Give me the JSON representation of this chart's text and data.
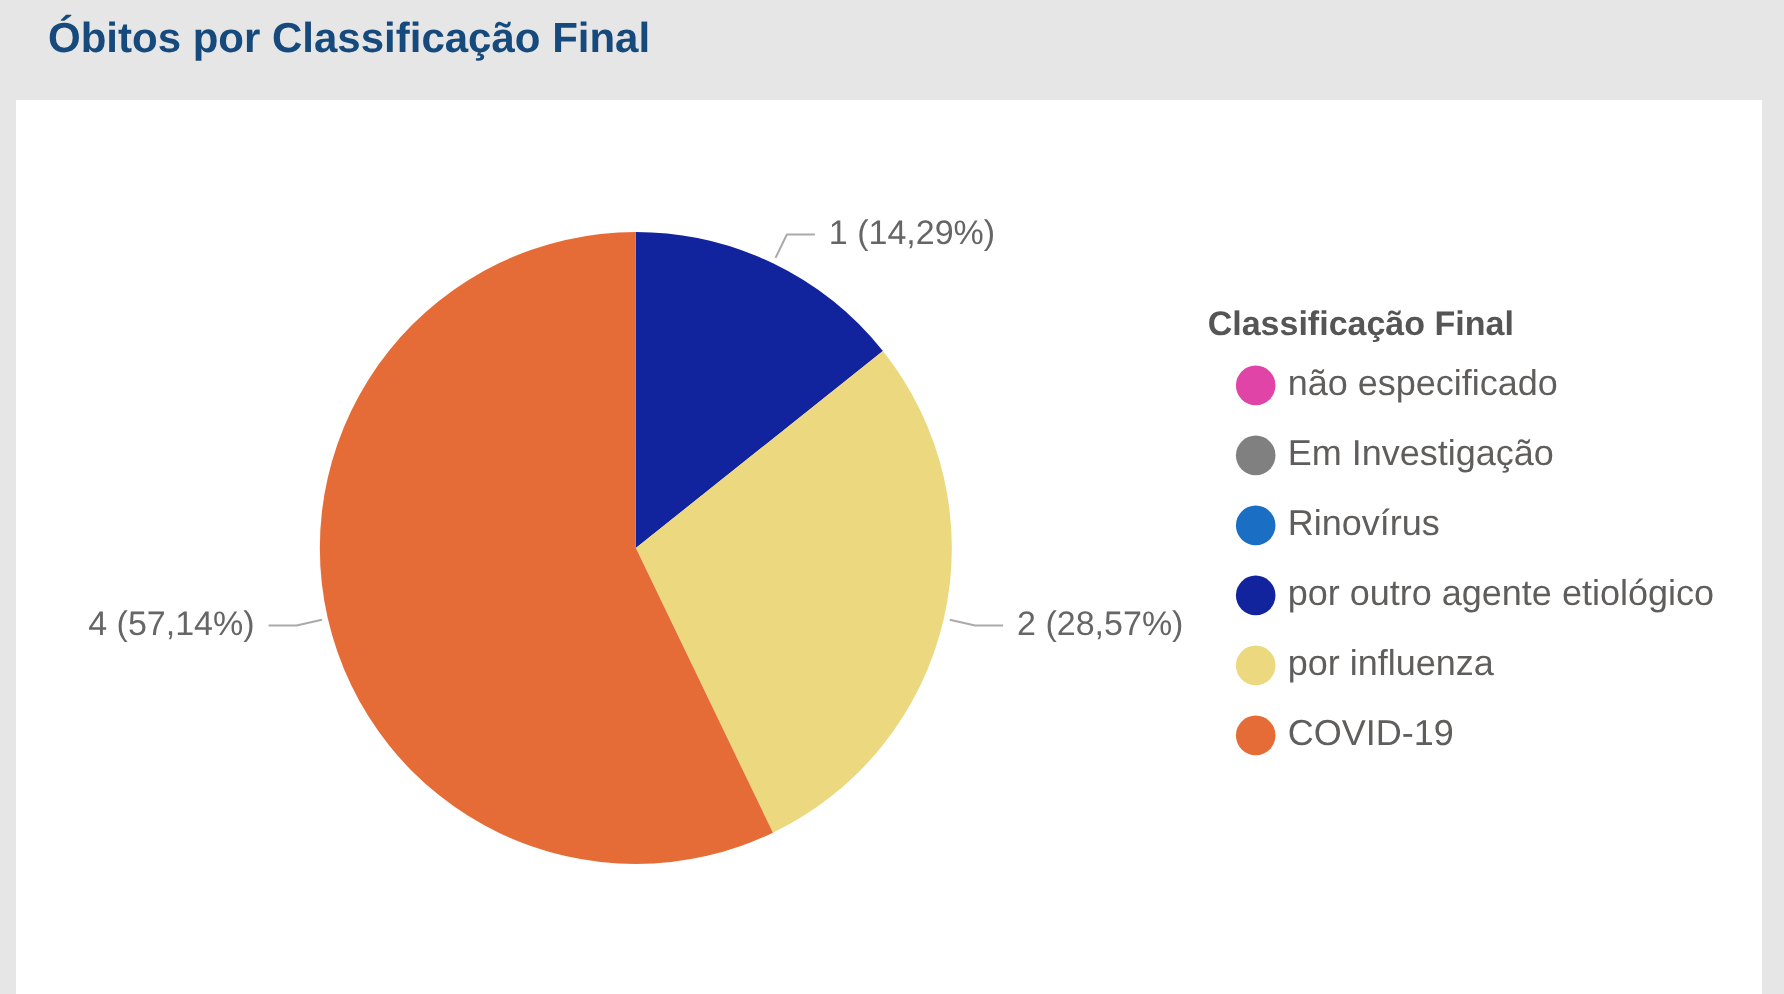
{
  "chart_data": {
    "type": "pie",
    "title": "Óbitos por Classificação Final",
    "legend_title": "Classificação Final",
    "categories": [
      "não especificado",
      "Em Investigação",
      "Rinovírus",
      "por outro agente etiológico",
      "por influenza",
      "COVID-19"
    ],
    "values": [
      0,
      0,
      0,
      1,
      2,
      4
    ],
    "colors": [
      "#e044a7",
      "#808080",
      "#1a6ec4",
      "#12239e",
      "#ecd97f",
      "#e66c37"
    ],
    "value_labels": [
      null,
      null,
      null,
      "1 (14,29%)",
      "2 (28,57%)",
      "4 (57,14%)"
    ],
    "legend": "right"
  }
}
